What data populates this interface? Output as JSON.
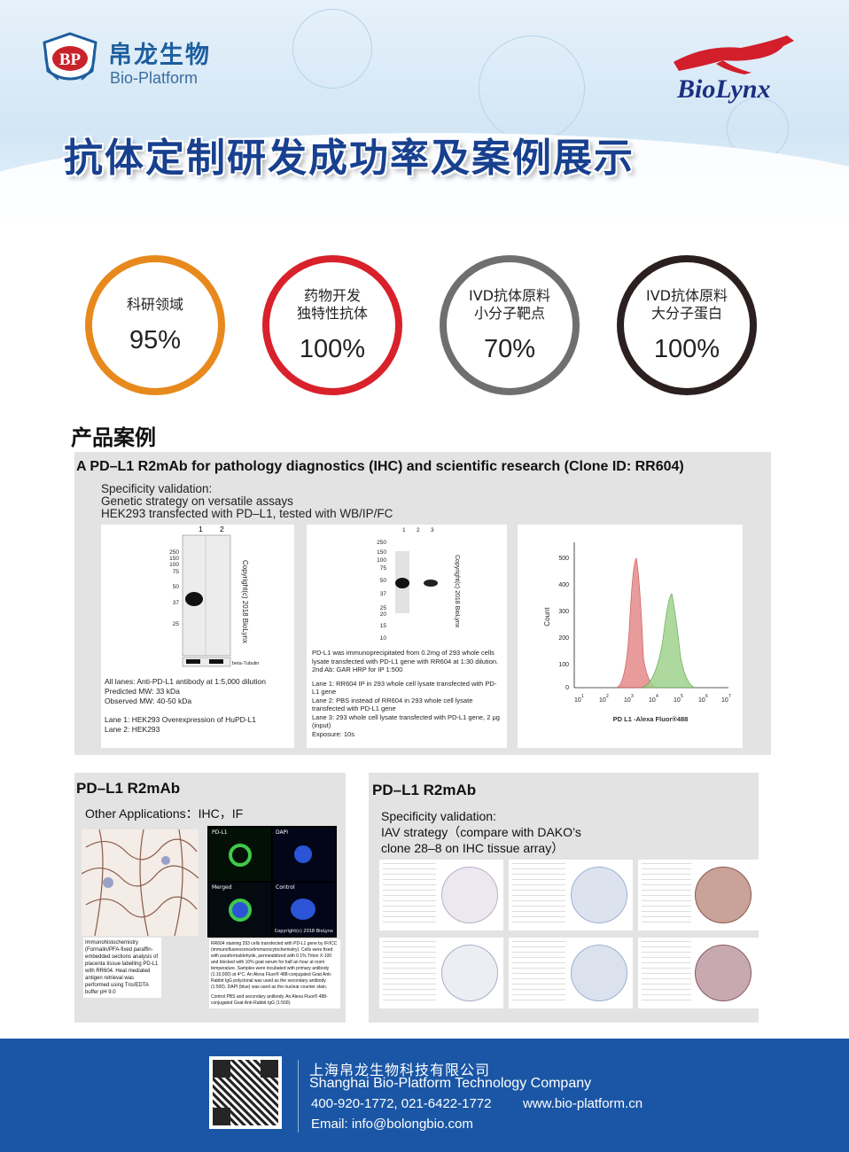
{
  "header": {
    "bp_logo_cn": "帛龙生物",
    "bp_logo_en": "Bio-Platform",
    "bp_shield_text": "BP",
    "biolynx": "BioLynx",
    "title": "抗体定制研发成功率及案例展示"
  },
  "stats": [
    {
      "line1": "科研领域",
      "line2": "",
      "pct": "95%",
      "color": "#e8891d"
    },
    {
      "line1": "药物开发",
      "line2": "独特性抗体",
      "pct": "100%",
      "color": "#d8212a"
    },
    {
      "line1": "IVD抗体原料",
      "line2": "小分子靶点",
      "pct": "70%",
      "color": "#6f6f6f"
    },
    {
      "line1": "IVD抗体原料",
      "line2": "大分子蛋白",
      "pct": "100%",
      "color": "#2b1f1f"
    }
  ],
  "section_title": "产品案例",
  "panel": {
    "title": "A PD–L1 R2mAb for pathology diagnostics (IHC) and scientific research (Clone ID: RR604)",
    "sub1": "Specificity validation:",
    "sub2": "Genetic strategy on versatile assays",
    "sub3": "HEK293 transfected with PD–L1, tested with WB/IP/FC",
    "wb": {
      "lanes": [
        "1",
        "2"
      ],
      "markers": [
        "250",
        "150",
        "100",
        "75",
        "50",
        "37",
        "25"
      ],
      "copyright": "Copyright(c) 2018 BioLynx",
      "loading": "beta-Tubulin",
      "caption1": "All lanes: Anti-PD-L1 antibody at 1:5,000 dilution",
      "caption2": "Predicted MW: 33 kDa",
      "caption3": "Observed MW: 40-50 kDa",
      "caption4": "Lane 1: HEK293 Overexpression of HuPD-L1",
      "caption5": "Lane 2: HEK293"
    },
    "ip": {
      "lanes": [
        "1",
        "2",
        "3"
      ],
      "markers": [
        "250",
        "150",
        "100",
        "75",
        "50",
        "37",
        "25",
        "20",
        "15",
        "10"
      ],
      "copyright": "Copyright(c) 2018 BioLynx",
      "caption1": "PD-L1 was immunoprecipitated from 0.2mg of 293 whole cells lysate transfected with PD-L1 gene with RR604 at 1:30 dilution.",
      "caption2": "2nd Ab: GAR HRP for IP 1:500",
      "caption3": "Lane 1: RR604 IP in 293 whole cell lysate transfected with PD-L1 gene",
      "caption4": "Lane 2: PBS instead of RR604 in 293 whole cell lysate transfected with PD-L1 gene",
      "caption5": "Lane 3: 293 whole cell lysate transfected with PD-L1 gene, 2 μg (input)",
      "caption6": "Exposure: 10s"
    },
    "fc": {
      "ylabel": "Count",
      "xlabel": "PD L1 -Alexa Fluor®488",
      "yticks": [
        "500",
        "400",
        "300",
        "200",
        "100",
        "0"
      ],
      "xticks": [
        "1",
        "2",
        "3",
        "4",
        "5",
        "6",
        "7"
      ],
      "xbase": "10"
    }
  },
  "left_panel": {
    "title": "PD–L1 R2mAb",
    "sub": "Other Applications：IHC，IF",
    "ihc_caption": "Immunohistochemistry (Formalin/PFA-fixed paraffin-embedded sections analysis of placenta tissue labelling PD-L1 with RR604. Heat mediated antigen retrieval was performed using Tris/EDTA buffer pH 9.0",
    "if_labels": [
      "PD-L1",
      "DAPI",
      "Merged",
      "Control"
    ],
    "if_copyright": "Copyright(c) 2018 BioLynx",
    "if_caption1": "RR604 staining 293 cells transfected with PD-L1 gene by IF/ICC (immunofluorescence/immunocytochemistry). Cells were fixed with paraformaldehyde, permeabilized with 0.1% Triton X-100 and blocked with 10% goat serum for half an hour at room temperature. Samples were incubated with primary antibody (1:10,000) at 4°C. An Alexa Fluor® 488-conjugated Goat Anti-Rabbit IgG polyclonal was used as the secondary antibody (1:500). DAPI (blue) was used as the nuclear counter stain.",
    "if_caption2": "Control PBS and secondary antibody. An Alexa Fluor® 488-conjugated Goat Anti-Rabbit IgG (1:500)."
  },
  "right_panel": {
    "title": "PD–L1 R2mAb",
    "sub1": "Specificity validation:",
    "sub2": "IAV strategy（compare with DAKO’s",
    "sub3": "clone 28–8 on IHC tissue array）"
  },
  "footer": {
    "company_cn": "上海帛龙生物科技有限公司",
    "company_en": "Shanghai Bio-Platform Technology Company",
    "phone": "400-920-1772, 021-6422-1772",
    "web": "www.bio-platform.cn",
    "email": "Email: info@bolongbio.com"
  }
}
